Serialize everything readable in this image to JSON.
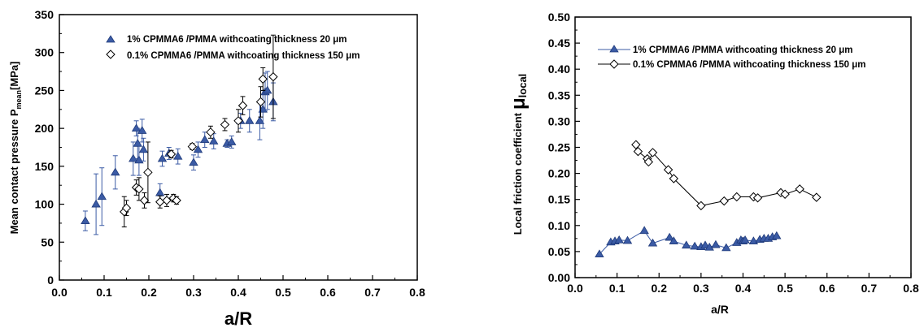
{
  "chart_data": [
    {
      "type": "scatter",
      "title": "",
      "xlabel": "a/R",
      "ylabel": "Mean contact pressure P",
      "ylabel_sub": "mean",
      "ylabel_unit": "[MPa]",
      "xlim": [
        0.0,
        0.8
      ],
      "ylim": [
        0,
        350
      ],
      "xticks": [
        "0.0",
        "0.1",
        "0.2",
        "0.3",
        "0.4",
        "0.5",
        "0.6",
        "0.7",
        "0.8"
      ],
      "yticks": [
        "0",
        "50",
        "100",
        "150",
        "200",
        "250",
        "300",
        "350"
      ],
      "legend_position": "top-left",
      "series": [
        {
          "name": "1% CPMMA6 /PMMA withcoating thickness 20 μm",
          "marker": "triangle",
          "color": "#3b5ba5",
          "points": [
            [
              0.058,
              78,
              13
            ],
            [
              0.082,
              100,
              40
            ],
            [
              0.095,
              110,
              38
            ],
            [
              0.125,
              142,
              22
            ],
            [
              0.165,
              160,
              22
            ],
            [
              0.172,
              200,
              10
            ],
            [
              0.175,
              180,
              20
            ],
            [
              0.178,
              158,
              20
            ],
            [
              0.185,
              197,
              15
            ],
            [
              0.188,
              172,
              15
            ],
            [
              0.225,
              115,
              12
            ],
            [
              0.23,
              160,
              10
            ],
            [
              0.245,
              167,
              8
            ],
            [
              0.265,
              163,
              10
            ],
            [
              0.3,
              155,
              10
            ],
            [
              0.31,
              172,
              10
            ],
            [
              0.325,
              185,
              10
            ],
            [
              0.345,
              183,
              10
            ],
            [
              0.375,
              180,
              5
            ],
            [
              0.385,
              182,
              8
            ],
            [
              0.405,
              210,
              10
            ],
            [
              0.425,
              210,
              15
            ],
            [
              0.448,
              210,
              25
            ],
            [
              0.455,
              225,
              25
            ],
            [
              0.46,
              248,
              25
            ],
            [
              0.465,
              250,
              25
            ],
            [
              0.478,
              235,
              25
            ]
          ]
        },
        {
          "name": "0.1% CPMMA6 /PMMA withcoating thickness 150 μm",
          "marker": "diamond",
          "color": "#000000",
          "points": [
            [
              0.145,
              90,
              20
            ],
            [
              0.15,
              95,
              10
            ],
            [
              0.172,
              122,
              10
            ],
            [
              0.178,
              120,
              15
            ],
            [
              0.19,
              105,
              10
            ],
            [
              0.198,
              142,
              40
            ],
            [
              0.225,
              103,
              8
            ],
            [
              0.24,
              105,
              8
            ],
            [
              0.25,
              166,
              5
            ],
            [
              0.255,
              108,
              5
            ],
            [
              0.262,
              105,
              5
            ],
            [
              0.297,
              176,
              4
            ],
            [
              0.338,
              195,
              8
            ],
            [
              0.37,
              205,
              8
            ],
            [
              0.4,
              210,
              15
            ],
            [
              0.41,
              230,
              12
            ],
            [
              0.45,
              235,
              20
            ],
            [
              0.455,
              265,
              15
            ],
            [
              0.478,
              268,
              55
            ]
          ]
        }
      ]
    },
    {
      "type": "line",
      "title": "",
      "xlabel": "a/R",
      "ylabel": "Local friction coefficient",
      "ylabel_symbol": "μ",
      "ylabel_sub": "local",
      "xlim": [
        0.0,
        0.8
      ],
      "ylim": [
        0.0,
        0.5
      ],
      "xticks": [
        "0.0",
        "0.1",
        "0.2",
        "0.3",
        "0.4",
        "0.5",
        "0.6",
        "0.7",
        "0.8"
      ],
      "yticks": [
        "0.00",
        "0.05",
        "0.10",
        "0.15",
        "0.20",
        "0.25",
        "0.30",
        "0.35",
        "0.40",
        "0.45",
        "0.50"
      ],
      "legend_position": "top-left",
      "series": [
        {
          "name": "1% CPMMA6 /PMMA withcoating thickness 20 μm",
          "marker": "triangle",
          "color": "#3b5ba5",
          "points": [
            [
              0.058,
              0.045
            ],
            [
              0.085,
              0.068
            ],
            [
              0.095,
              0.07
            ],
            [
              0.105,
              0.072
            ],
            [
              0.125,
              0.071
            ],
            [
              0.165,
              0.09
            ],
            [
              0.185,
              0.066
            ],
            [
              0.225,
              0.077
            ],
            [
              0.235,
              0.07
            ],
            [
              0.265,
              0.062
            ],
            [
              0.285,
              0.06
            ],
            [
              0.3,
              0.059
            ],
            [
              0.31,
              0.062
            ],
            [
              0.32,
              0.058
            ],
            [
              0.335,
              0.063
            ],
            [
              0.36,
              0.057
            ],
            [
              0.385,
              0.067
            ],
            [
              0.395,
              0.072
            ],
            [
              0.4,
              0.07
            ],
            [
              0.405,
              0.072
            ],
            [
              0.425,
              0.07
            ],
            [
              0.44,
              0.073
            ],
            [
              0.45,
              0.075
            ],
            [
              0.46,
              0.075
            ],
            [
              0.47,
              0.078
            ],
            [
              0.48,
              0.08
            ]
          ]
        },
        {
          "name": "0.1% CPMMA6 /PMMA withcoating thickness 150 μm",
          "marker": "diamond",
          "color": "#000000",
          "points": [
            [
              0.145,
              0.255
            ],
            [
              0.15,
              0.242
            ],
            [
              0.172,
              0.228
            ],
            [
              0.175,
              0.222
            ],
            [
              0.185,
              0.24
            ],
            [
              0.222,
              0.207
            ],
            [
              0.235,
              0.19
            ],
            [
              0.3,
              0.138
            ],
            [
              0.355,
              0.147
            ],
            [
              0.385,
              0.155
            ],
            [
              0.425,
              0.155
            ],
            [
              0.435,
              0.153
            ],
            [
              0.49,
              0.163
            ],
            [
              0.5,
              0.16
            ],
            [
              0.535,
              0.17
            ],
            [
              0.575,
              0.154
            ]
          ]
        }
      ]
    }
  ]
}
